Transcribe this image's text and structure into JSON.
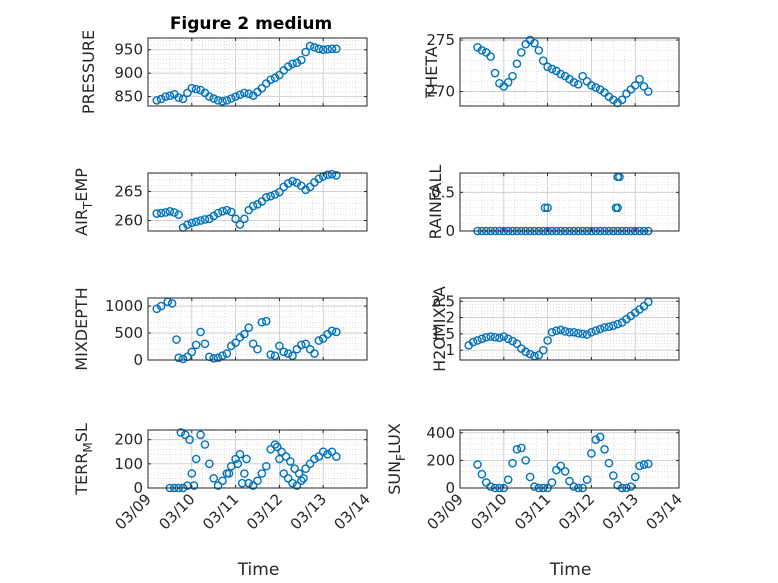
{
  "figure_title": "Figure 2 medium",
  "colors": {
    "marker": "#0072BD",
    "axes": "#262626",
    "grid": "#c9c9c9"
  },
  "chart_data": [
    {
      "type": "scatter",
      "title": "Figure 2 medium",
      "ylabel": "PRESSURE",
      "xlabel": "",
      "xlim": [
        0,
        5
      ],
      "ylim": [
        830,
        975
      ],
      "yticks": [
        850,
        900,
        950
      ],
      "ytick_labels": [
        "850",
        "900",
        "950"
      ],
      "xticks": [
        0,
        1,
        2,
        3,
        4,
        5
      ],
      "grid": true,
      "x": [
        0.2,
        0.3,
        0.4,
        0.5,
        0.6,
        0.7,
        0.8,
        0.9,
        1.0,
        1.1,
        1.2,
        1.3,
        1.4,
        1.5,
        1.6,
        1.7,
        1.8,
        1.9,
        2.0,
        2.1,
        2.2,
        2.3,
        2.4,
        2.5,
        2.6,
        2.7,
        2.8,
        2.9,
        3.0,
        3.1,
        3.2,
        3.3,
        3.4,
        3.5,
        3.6,
        3.7,
        3.8,
        3.9,
        4.0,
        4.1,
        4.2,
        4.3
      ],
      "y": [
        842,
        845,
        850,
        852,
        855,
        848,
        845,
        858,
        868,
        866,
        864,
        858,
        850,
        846,
        842,
        840,
        842,
        846,
        850,
        854,
        858,
        856,
        852,
        860,
        868,
        878,
        886,
        890,
        896,
        906,
        914,
        920,
        922,
        928,
        945,
        958,
        955,
        952,
        950,
        951,
        952,
        952
      ]
    },
    {
      "type": "scatter",
      "ylabel": "THETA",
      "xlabel": "",
      "xlim": [
        0,
        5
      ],
      "ylim": [
        268.6,
        275.2
      ],
      "yticks": [
        270,
        275
      ],
      "ytick_labels": [
        "270",
        "275"
      ],
      "xticks": [
        0,
        1,
        2,
        3,
        4,
        5
      ],
      "grid": true,
      "x": [
        0.4,
        0.5,
        0.6,
        0.7,
        0.8,
        0.9,
        1.0,
        1.1,
        1.2,
        1.3,
        1.4,
        1.5,
        1.6,
        1.7,
        1.8,
        1.9,
        2.0,
        2.1,
        2.2,
        2.3,
        2.4,
        2.5,
        2.6,
        2.7,
        2.8,
        2.9,
        3.0,
        3.1,
        3.2,
        3.3,
        3.4,
        3.5,
        3.6,
        3.7,
        3.8,
        3.9,
        4.0,
        4.1,
        4.2,
        4.3
      ],
      "y": [
        274.3,
        274.0,
        273.8,
        273.4,
        271.8,
        270.8,
        270.5,
        270.9,
        271.5,
        272.7,
        273.8,
        274.6,
        275.0,
        274.7,
        274.0,
        273.0,
        272.4,
        272.2,
        272.0,
        271.7,
        271.5,
        271.2,
        270.9,
        270.7,
        271.5,
        271.0,
        270.6,
        270.4,
        270.2,
        269.9,
        269.5,
        269.2,
        268.9,
        269.2,
        269.8,
        270.2,
        270.6,
        271.2,
        270.5,
        270.0
      ]
    },
    {
      "type": "scatter",
      "ylabel": "AIR_TEMP",
      "xlabel": "",
      "xlim": [
        0,
        5
      ],
      "ylim": [
        258.2,
        268.2
      ],
      "yticks": [
        260,
        265
      ],
      "ytick_labels": [
        "260",
        "265"
      ],
      "xticks": [
        0,
        1,
        2,
        3,
        4,
        5
      ],
      "grid": true,
      "x": [
        0.2,
        0.3,
        0.4,
        0.5,
        0.6,
        0.7,
        0.8,
        0.9,
        1.0,
        1.1,
        1.2,
        1.3,
        1.4,
        1.5,
        1.6,
        1.7,
        1.8,
        1.9,
        2.0,
        2.1,
        2.2,
        2.3,
        2.4,
        2.5,
        2.6,
        2.7,
        2.8,
        2.9,
        3.0,
        3.1,
        3.2,
        3.3,
        3.4,
        3.5,
        3.6,
        3.7,
        3.8,
        3.9,
        4.0,
        4.1,
        4.2,
        4.3
      ],
      "y": [
        261.2,
        261.3,
        261.4,
        261.6,
        261.4,
        261.0,
        258.8,
        259.3,
        259.6,
        259.8,
        260.0,
        260.2,
        260.3,
        260.8,
        261.3,
        261.6,
        261.8,
        261.5,
        260.3,
        259.3,
        260.3,
        261.8,
        262.5,
        262.8,
        263.3,
        264.0,
        264.2,
        264.5,
        264.9,
        265.8,
        266.4,
        266.8,
        266.5,
        266.0,
        265.3,
        265.8,
        266.6,
        267.2,
        267.6,
        267.9,
        268.0,
        267.8
      ]
    },
    {
      "type": "scatter",
      "ylabel": "RAINFALL",
      "xlabel": "",
      "xlim": [
        0,
        5
      ],
      "ylim": [
        0,
        0.75
      ],
      "yticks": [
        0,
        0.5
      ],
      "ytick_labels": [
        "0",
        "0.5"
      ],
      "xticks": [
        0,
        1,
        2,
        3,
        4,
        5
      ],
      "grid": true,
      "x": [
        0.4,
        0.5,
        0.6,
        0.7,
        0.8,
        0.9,
        1.0,
        1.1,
        1.2,
        1.3,
        1.4,
        1.5,
        1.6,
        1.7,
        1.8,
        1.9,
        2.0,
        2.1,
        2.2,
        2.3,
        2.4,
        2.5,
        2.6,
        2.7,
        2.8,
        2.9,
        3.0,
        3.1,
        3.2,
        3.3,
        3.4,
        3.5,
        3.6,
        3.7,
        3.8,
        3.9,
        4.0,
        4.1,
        4.2,
        4.3,
        1.94,
        2.0,
        3.56,
        3.6,
        3.6,
        3.64
      ],
      "y": [
        0,
        0,
        0,
        0,
        0,
        0,
        0,
        0,
        0,
        0,
        0,
        0,
        0,
        0,
        0,
        0,
        0,
        0,
        0,
        0,
        0,
        0,
        0,
        0,
        0,
        0,
        0,
        0,
        0,
        0,
        0,
        0,
        0,
        0,
        0,
        0,
        0,
        0,
        0,
        0,
        0.3,
        0.3,
        0.3,
        0.3,
        0.7,
        0.7
      ]
    },
    {
      "type": "scatter",
      "ylabel": "MIXDEPTH",
      "xlabel": "",
      "xlim": [
        0,
        5
      ],
      "ylim": [
        0,
        1150
      ],
      "yticks": [
        0,
        500,
        1000
      ],
      "ytick_labels": [
        "0",
        "500",
        "1000"
      ],
      "xticks": [
        0,
        1,
        2,
        3,
        4,
        5
      ],
      "grid": true,
      "x": [
        0.2,
        0.3,
        0.45,
        0.55,
        0.65,
        0.7,
        0.8,
        0.9,
        1.0,
        1.1,
        1.2,
        1.3,
        1.4,
        1.5,
        1.6,
        1.7,
        1.8,
        1.9,
        2.0,
        2.1,
        2.2,
        2.3,
        2.4,
        2.5,
        2.6,
        2.7,
        2.8,
        2.9,
        3.0,
        3.1,
        3.2,
        3.3,
        3.4,
        3.5,
        3.6,
        3.7,
        3.8,
        3.9,
        4.0,
        4.1,
        4.2,
        4.3
      ],
      "y": [
        950,
        1000,
        1080,
        1050,
        380,
        40,
        20,
        60,
        150,
        280,
        520,
        300,
        60,
        30,
        40,
        80,
        120,
        260,
        320,
        420,
        480,
        600,
        300,
        200,
        700,
        720,
        100,
        80,
        260,
        150,
        120,
        80,
        200,
        280,
        300,
        200,
        120,
        360,
        400,
        480,
        540,
        520
      ]
    },
    {
      "type": "scatter",
      "ylabel": "H2OMIXRA",
      "xlabel": "",
      "xlim": [
        0,
        5
      ],
      "ylim": [
        0.7,
        2.6
      ],
      "yticks": [
        1,
        1.5,
        2,
        2.5
      ],
      "ytick_labels": [
        "1",
        "1.5",
        "2",
        "2.5"
      ],
      "xticks": [
        0,
        1,
        2,
        3,
        4,
        5
      ],
      "grid": true,
      "x": [
        0.2,
        0.3,
        0.4,
        0.5,
        0.6,
        0.7,
        0.8,
        0.9,
        1.0,
        1.1,
        1.2,
        1.3,
        1.4,
        1.5,
        1.6,
        1.7,
        1.8,
        1.9,
        2.0,
        2.1,
        2.2,
        2.3,
        2.4,
        2.5,
        2.6,
        2.7,
        2.8,
        2.9,
        3.0,
        3.1,
        3.2,
        3.3,
        3.4,
        3.5,
        3.6,
        3.7,
        3.8,
        3.9,
        4.0,
        4.1,
        4.2,
        4.3
      ],
      "y": [
        1.15,
        1.25,
        1.3,
        1.35,
        1.4,
        1.42,
        1.4,
        1.38,
        1.42,
        1.35,
        1.28,
        1.2,
        1.05,
        0.95,
        0.88,
        0.82,
        0.85,
        1.0,
        1.3,
        1.55,
        1.6,
        1.62,
        1.58,
        1.55,
        1.55,
        1.52,
        1.5,
        1.48,
        1.55,
        1.6,
        1.65,
        1.7,
        1.72,
        1.75,
        1.8,
        1.85,
        1.95,
        2.05,
        2.15,
        2.25,
        2.35,
        2.48
      ]
    },
    {
      "type": "scatter",
      "ylabel": "TERR_MSL",
      "xlabel": "Time",
      "xlim": [
        0,
        5
      ],
      "ylim": [
        0,
        240
      ],
      "yticks": [
        0,
        100,
        200
      ],
      "ytick_labels": [
        "0",
        "100",
        "200"
      ],
      "xticks": [
        0,
        1,
        2,
        3,
        4,
        5
      ],
      "xtick_labels": [
        "03/09",
        "03/10",
        "03/11",
        "03/12",
        "03/13",
        "03/14"
      ],
      "grid": true,
      "x": [
        0.5,
        0.6,
        0.7,
        0.8,
        0.9,
        1.0,
        1.1,
        1.2,
        1.3,
        1.4,
        1.5,
        1.6,
        1.7,
        1.8,
        1.9,
        2.0,
        2.1,
        2.2,
        2.3,
        2.4,
        2.5,
        2.6,
        2.7,
        2.8,
        2.9,
        3.0,
        3.1,
        3.2,
        3.3,
        3.4,
        3.5,
        3.6,
        3.7,
        3.8,
        3.9,
        4.0,
        4.1,
        4.2,
        4.3,
        0.75,
        0.85,
        0.95,
        2.05,
        2.15,
        2.95,
        3.05,
        3.15,
        3.25,
        3.35,
        3.45,
        3.55,
        1.05,
        1.85,
        2.25
      ],
      "y": [
        0,
        0,
        0,
        0,
        10,
        60,
        120,
        220,
        180,
        100,
        40,
        10,
        30,
        60,
        90,
        120,
        140,
        60,
        20,
        10,
        30,
        60,
        90,
        160,
        180,
        120,
        60,
        40,
        20,
        10,
        30,
        80,
        100,
        120,
        130,
        150,
        140,
        150,
        130,
        230,
        220,
        200,
        100,
        20,
        170,
        150,
        130,
        110,
        80,
        60,
        40,
        10,
        60,
        120
      ]
    },
    {
      "type": "scatter",
      "ylabel": "SUN_FLUX",
      "xlabel": "Time",
      "xlim": [
        0,
        5
      ],
      "ylim": [
        0,
        420
      ],
      "yticks": [
        0,
        200,
        400
      ],
      "ytick_labels": [
        "0",
        "200",
        "400"
      ],
      "xticks": [
        0,
        1,
        2,
        3,
        4,
        5
      ],
      "xtick_labels": [
        "03/09",
        "03/10",
        "03/11",
        "03/12",
        "03/13",
        "03/14"
      ],
      "grid": true,
      "x": [
        0.4,
        0.5,
        0.6,
        0.7,
        0.8,
        0.9,
        1.0,
        1.1,
        1.2,
        1.3,
        1.4,
        1.5,
        1.6,
        1.7,
        1.8,
        1.9,
        2.0,
        2.1,
        2.2,
        2.3,
        2.4,
        2.5,
        2.6,
        2.7,
        2.8,
        2.9,
        3.0,
        3.1,
        3.2,
        3.3,
        3.4,
        3.5,
        3.6,
        3.7,
        3.8,
        3.9,
        4.0,
        4.1,
        4.2,
        4.3
      ],
      "y": [
        170,
        100,
        40,
        10,
        0,
        0,
        0,
        60,
        180,
        280,
        290,
        200,
        80,
        10,
        0,
        0,
        0,
        40,
        130,
        160,
        120,
        50,
        10,
        0,
        0,
        60,
        250,
        350,
        370,
        280,
        180,
        90,
        20,
        0,
        0,
        10,
        80,
        160,
        170,
        175
      ]
    }
  ]
}
